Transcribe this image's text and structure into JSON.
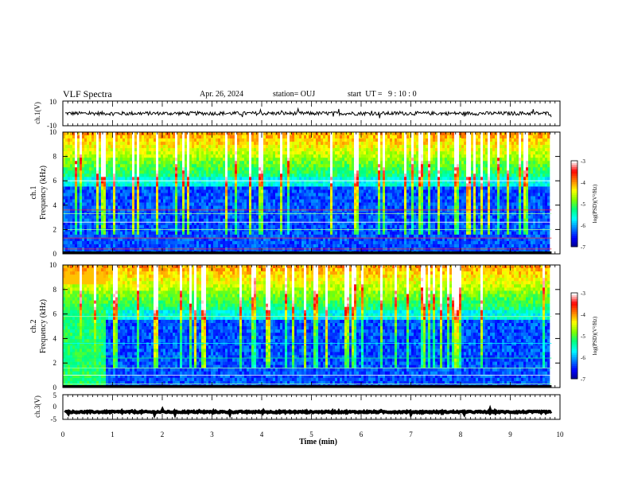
{
  "header": {
    "title": "VLF Spectra",
    "date": "Apr. 26, 2024",
    "station": "station= OUJ",
    "start": "start  UT =   9 : 10 : 0"
  },
  "chart_data": [
    {
      "type": "line",
      "id": "ch1-waveform",
      "ylabel": "ch.1(V)",
      "ylim": [
        -10,
        10
      ],
      "y_ticks": [
        "10",
        "-10"
      ],
      "xlim": [
        0,
        10
      ],
      "mean_level": 0,
      "amplitude": 1.5
    },
    {
      "type": "heatmap",
      "id": "ch1-spectrogram",
      "ylabel": "ch.1\nFrequency (kHz)",
      "ylim": [
        0,
        10
      ],
      "y_ticks": [
        "0",
        "2",
        "4",
        "6",
        "8",
        "10"
      ],
      "xlim": [
        0,
        10
      ],
      "data_end_min": 9.83,
      "colorbar": {
        "label": "log(PSD)(V²/Hz)",
        "range": [
          -7,
          -3
        ],
        "ticks": [
          "-3",
          "-4",
          "-5",
          "-6",
          "-7"
        ]
      }
    },
    {
      "type": "heatmap",
      "id": "ch2-spectrogram",
      "ylabel": "ch.2\nFrequency (kHz)",
      "ylim": [
        0,
        10
      ],
      "y_ticks": [
        "0",
        "2",
        "4",
        "6",
        "8",
        "10"
      ],
      "xlim": [
        0,
        10
      ],
      "data_end_min": 9.83,
      "colorbar": {
        "label": "log(PSD)(V²/Hz)",
        "range": [
          -7,
          -3
        ],
        "ticks": [
          "-3",
          "-4",
          "-5",
          "-6",
          "-7"
        ]
      }
    },
    {
      "type": "line",
      "id": "ch3-waveform",
      "ylabel": "ch.3(V)",
      "ylim": [
        -5,
        5
      ],
      "y_ticks": [
        "5",
        "0",
        "-5"
      ],
      "xlim": [
        0,
        10
      ],
      "mean_level": -2,
      "amplitude": 0.3,
      "xlabel": "Time (min)",
      "x_ticks": [
        "0",
        "1",
        "2",
        "3",
        "4",
        "5",
        "6",
        "7",
        "8",
        "9",
        "10"
      ]
    }
  ],
  "colors": {
    "colormap": [
      "#000080",
      "#0000ff",
      "#0080ff",
      "#00ffff",
      "#00ff80",
      "#80ff00",
      "#ffff00",
      "#ff8000",
      "#ff0000",
      "#ffffff"
    ]
  }
}
